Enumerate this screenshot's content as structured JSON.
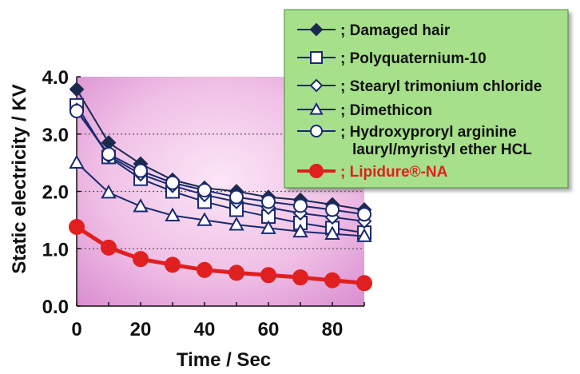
{
  "chart_data": {
    "type": "line",
    "xlabel": "Time / Sec",
    "ylabel": "Static electricity / KV",
    "xlim": [
      0,
      90
    ],
    "ylim": [
      0,
      4.0
    ],
    "xticks": [
      "0",
      "20",
      "40",
      "60",
      "80"
    ],
    "yticks": [
      "0.0",
      "1.0",
      "2.0",
      "3.0",
      "4.0"
    ],
    "grid": "horizontal dotted",
    "legend_position": "top-right",
    "plot_background": "#f2bfe6",
    "legend_background": "#a6e08a",
    "x": [
      0,
      10,
      20,
      30,
      40,
      50,
      60,
      70,
      80,
      90
    ],
    "series": [
      {
        "name": "; Damaged hair",
        "marker": "diamond-filled",
        "color": "#1a2a4f",
        "values": [
          3.78,
          2.85,
          2.48,
          2.2,
          2.06,
          2.0,
          1.9,
          1.85,
          1.77,
          1.68
        ]
      },
      {
        "name": "; Polyquaternium-10",
        "marker": "square-open",
        "color": "#1a2a6f",
        "values": [
          3.5,
          2.6,
          2.22,
          2.0,
          1.82,
          1.68,
          1.56,
          1.45,
          1.36,
          1.28
        ]
      },
      {
        "name": "; Stearyl trimonium chloride",
        "marker": "diamond-open",
        "color": "#1a2a6f",
        "values": [
          3.42,
          2.62,
          2.3,
          2.1,
          1.94,
          1.82,
          1.72,
          1.62,
          1.55,
          1.48
        ]
      },
      {
        "name": "; Dimethicon",
        "marker": "triangle-open",
        "color": "#1a2a6f",
        "values": [
          2.5,
          1.98,
          1.74,
          1.58,
          1.5,
          1.42,
          1.36,
          1.3,
          1.26,
          1.22
        ]
      },
      {
        "name": "; Hydroxyproryl arginine",
        "name_line2": "lauryl/myristyl ether HCL",
        "marker": "circle-open",
        "color": "#1a2a6f",
        "values": [
          3.4,
          2.65,
          2.36,
          2.15,
          2.02,
          1.9,
          1.82,
          1.75,
          1.68,
          1.6
        ]
      },
      {
        "name": "; Lipidure®-NA",
        "marker": "circle-filled",
        "color": "#e02020",
        "values": [
          1.38,
          1.02,
          0.82,
          0.72,
          0.63,
          0.58,
          0.54,
          0.5,
          0.45,
          0.4
        ]
      }
    ]
  }
}
